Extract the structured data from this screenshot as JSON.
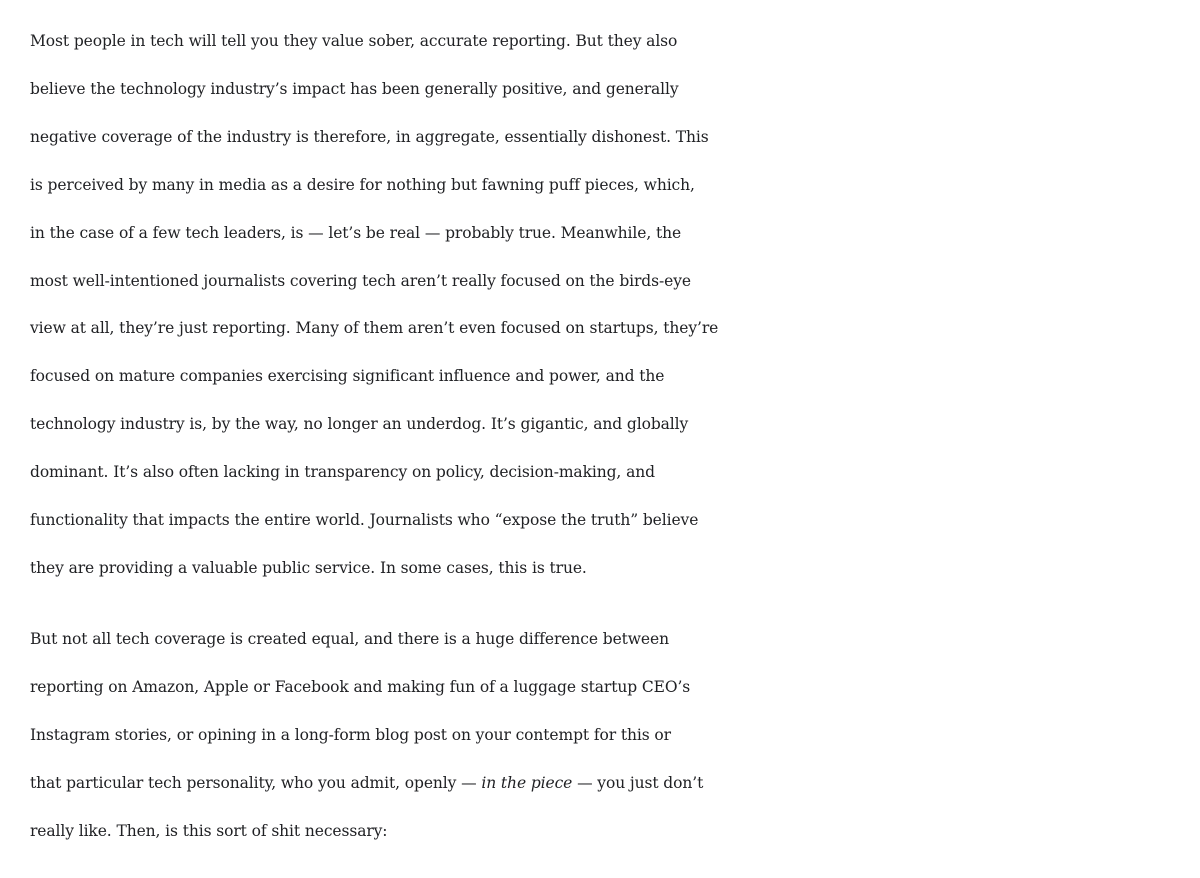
{
  "article": {
    "paragraphs": [
      {
        "lines": [
          "Most people in tech will tell you they value sober, accurate reporting. But they also",
          "believe the technology industry’s impact has been generally positive, and generally",
          "negative coverage of the industry is therefore, in aggregate, essentially dishonest. This",
          "is perceived by many in media as a desire for nothing but fawning puff pieces, which,",
          "in the case of a few tech leaders, is — let’s be real — probably true. Meanwhile, the",
          "most well-intentioned journalists covering tech aren’t really focused on the birds-eye",
          "view at all, they’re just reporting. Many of them aren’t even focused on startups, they’re",
          "focused on mature companies exercising significant influence and power, and the",
          "technology industry is, by the way, no longer an underdog. It’s gigantic, and globally",
          "dominant. It’s also often lacking in transparency on policy, decision-making, and",
          "functionality that impacts the entire world. Journalists who “expose the truth” believe",
          "they are providing a valuable public service. In some cases, this is true."
        ]
      },
      {
        "lines": [
          "But not all tech coverage is created equal, and there is a huge difference between",
          "reporting on Amazon, Apple or Facebook and making fun of a luggage startup CEO’s",
          "Instagram stories, or opining in a long-form blog post on your contempt for this or"
        ],
        "line4": {
          "before": "that particular tech personality, who you admit, openly — ",
          "emphasis": "in the piece",
          "after": " — you just don’t"
        },
        "line5": "really like. Then, is this sort of shit necessary:"
      }
    ]
  }
}
